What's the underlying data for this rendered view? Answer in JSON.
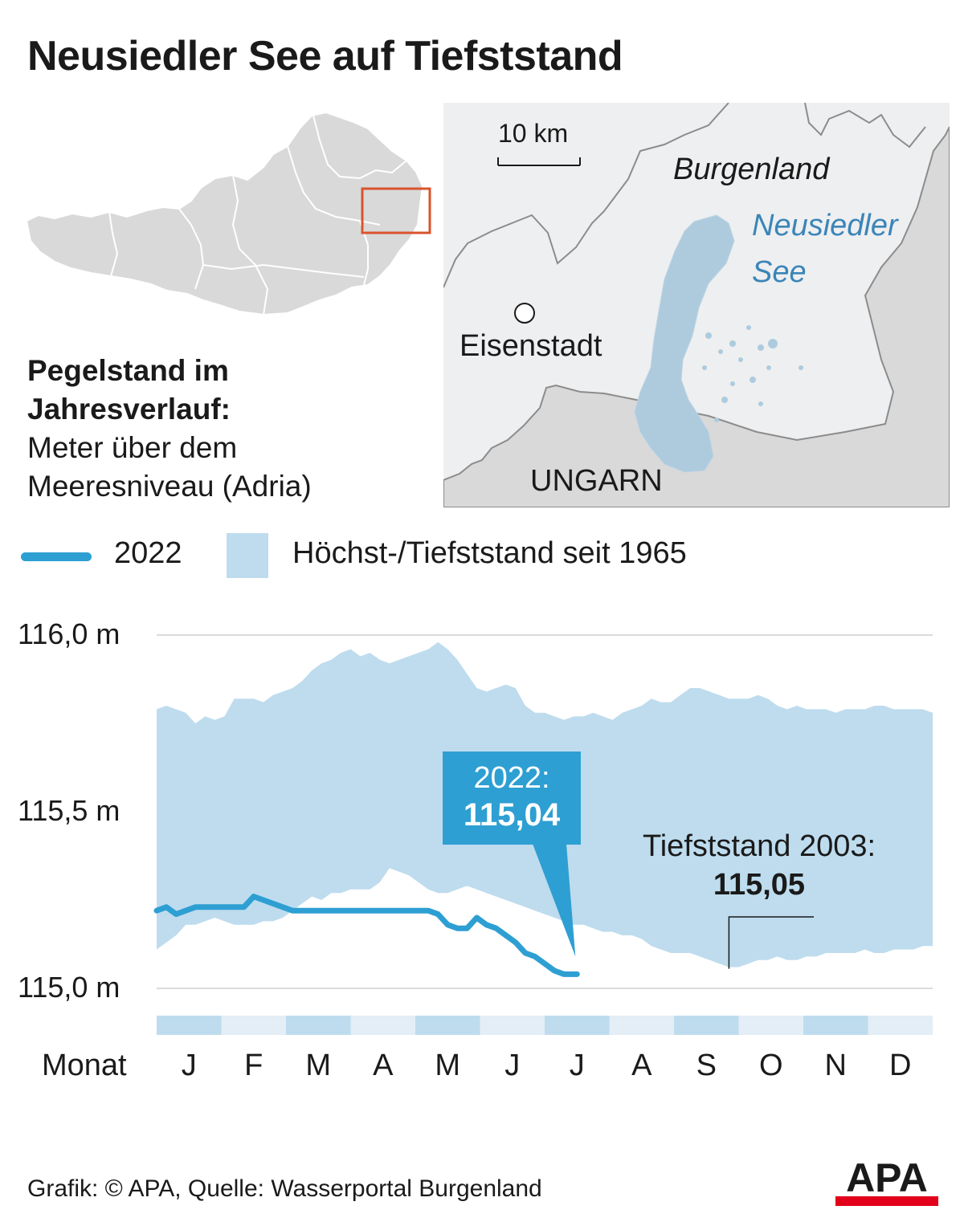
{
  "title": "Neusiedler See auf Tiefststand",
  "description": {
    "bold_line1": "Pegelstand im",
    "bold_line2": "Jahresverlauf:",
    "line3": "Meter über dem",
    "line4": "Meeresniveau (Adria)"
  },
  "map": {
    "scale": "10 km",
    "burgenland": "Burgenland",
    "lake_line1": "Neusiedler",
    "lake_line2": "See",
    "city": "Eisenstadt",
    "country": "UNGARN"
  },
  "legend": {
    "line_label": "2022",
    "band_label": "Höchst-/Tiefststand seit 1965"
  },
  "colors": {
    "line_2022": "#2e9fd2",
    "band": "#bedcee",
    "map_land": "#d9d9d9",
    "map_inset_bg": "#eeeff0",
    "lake": "#aecbde",
    "locator_box": "#d9542c",
    "logo_red": "#e2001a"
  },
  "chart_data": {
    "type": "area",
    "y_unit": "m",
    "yticks": [
      {
        "value": 116.0,
        "label": "116,0 m"
      },
      {
        "value": 115.5,
        "label": "115,5 m"
      },
      {
        "value": 115.0,
        "label": "115,0 m"
      }
    ],
    "ylim": [
      114.97,
      116.05
    ],
    "x_caption": "Monat",
    "months": [
      "J",
      "F",
      "M",
      "A",
      "M",
      "J",
      "J",
      "A",
      "S",
      "O",
      "N",
      "D"
    ],
    "grid": "horizontal",
    "legend_position": "top",
    "band": {
      "name": "Höchst-/Tiefststand seit 1965",
      "x": [
        0.0,
        0.15,
        0.3,
        0.45,
        0.6,
        0.75,
        0.9,
        1.05,
        1.2,
        1.35,
        1.5,
        1.65,
        1.8,
        1.95,
        2.1,
        2.25,
        2.4,
        2.55,
        2.7,
        2.85,
        3.0,
        3.15,
        3.3,
        3.45,
        3.6,
        3.75,
        3.9,
        4.05,
        4.2,
        4.35,
        4.5,
        4.65,
        4.8,
        4.95,
        5.1,
        5.25,
        5.4,
        5.55,
        5.7,
        5.85,
        6.0,
        6.15,
        6.3,
        6.45,
        6.6,
        6.75,
        6.9,
        7.05,
        7.2,
        7.35,
        7.5,
        7.65,
        7.8,
        7.95,
        8.1,
        8.25,
        8.4,
        8.55,
        8.7,
        8.85,
        9.0,
        9.15,
        9.3,
        9.45,
        9.6,
        9.75,
        9.9,
        10.05,
        10.2,
        10.35,
        10.5,
        10.65,
        10.8,
        10.95,
        11.1,
        11.25,
        11.4,
        11.55,
        11.7,
        11.85,
        12.0
      ],
      "high": [
        115.79,
        115.8,
        115.79,
        115.78,
        115.75,
        115.77,
        115.76,
        115.77,
        115.82,
        115.82,
        115.82,
        115.81,
        115.83,
        115.84,
        115.85,
        115.87,
        115.9,
        115.92,
        115.93,
        115.95,
        115.96,
        115.94,
        115.95,
        115.93,
        115.92,
        115.93,
        115.94,
        115.95,
        115.96,
        115.98,
        115.96,
        115.93,
        115.89,
        115.85,
        115.84,
        115.85,
        115.86,
        115.85,
        115.8,
        115.78,
        115.78,
        115.77,
        115.76,
        115.77,
        115.77,
        115.78,
        115.77,
        115.76,
        115.78,
        115.79,
        115.8,
        115.82,
        115.81,
        115.81,
        115.83,
        115.85,
        115.85,
        115.84,
        115.83,
        115.82,
        115.82,
        115.82,
        115.83,
        115.82,
        115.8,
        115.79,
        115.8,
        115.79,
        115.79,
        115.79,
        115.78,
        115.79,
        115.79,
        115.79,
        115.8,
        115.8,
        115.79,
        115.79,
        115.79,
        115.79,
        115.78
      ],
      "low": [
        115.11,
        115.13,
        115.15,
        115.18,
        115.18,
        115.19,
        115.2,
        115.19,
        115.18,
        115.18,
        115.18,
        115.19,
        115.19,
        115.2,
        115.22,
        115.24,
        115.26,
        115.25,
        115.27,
        115.27,
        115.28,
        115.28,
        115.28,
        115.3,
        115.34,
        115.33,
        115.32,
        115.3,
        115.28,
        115.27,
        115.27,
        115.28,
        115.29,
        115.28,
        115.27,
        115.26,
        115.25,
        115.24,
        115.23,
        115.22,
        115.21,
        115.2,
        115.19,
        115.18,
        115.18,
        115.17,
        115.16,
        115.16,
        115.15,
        115.15,
        115.14,
        115.12,
        115.11,
        115.1,
        115.1,
        115.1,
        115.09,
        115.08,
        115.07,
        115.06,
        115.06,
        115.07,
        115.08,
        115.08,
        115.09,
        115.08,
        115.08,
        115.09,
        115.09,
        115.1,
        115.1,
        115.1,
        115.1,
        115.11,
        115.1,
        115.1,
        115.11,
        115.11,
        115.11,
        115.12,
        115.12
      ]
    },
    "series": [
      {
        "name": "2022",
        "x": [
          0.0,
          0.15,
          0.3,
          0.45,
          0.6,
          0.75,
          0.9,
          1.05,
          1.2,
          1.35,
          1.5,
          1.65,
          1.8,
          1.95,
          2.1,
          2.25,
          2.4,
          2.55,
          2.7,
          2.85,
          3.0,
          3.15,
          3.3,
          3.45,
          3.6,
          3.75,
          3.9,
          4.05,
          4.2,
          4.35,
          4.5,
          4.65,
          4.8,
          4.95,
          5.1,
          5.25,
          5.4,
          5.55,
          5.7,
          5.85,
          6.0,
          6.15,
          6.3,
          6.45,
          6.5
        ],
        "values": [
          115.22,
          115.23,
          115.21,
          115.22,
          115.23,
          115.23,
          115.23,
          115.23,
          115.23,
          115.23,
          115.26,
          115.25,
          115.24,
          115.23,
          115.22,
          115.22,
          115.22,
          115.22,
          115.22,
          115.22,
          115.22,
          115.22,
          115.22,
          115.22,
          115.22,
          115.22,
          115.22,
          115.22,
          115.22,
          115.21,
          115.18,
          115.17,
          115.17,
          115.2,
          115.18,
          115.17,
          115.15,
          115.13,
          115.1,
          115.09,
          115.07,
          115.05,
          115.04,
          115.04,
          115.04
        ]
      }
    ],
    "annotations": {
      "current_label": "2022:",
      "current_value": "115,04",
      "record_label": "Tiefststand 2003:",
      "record_value": "115,05"
    }
  },
  "footer": "Grafik: © APA, Quelle: Wasserportal Burgenland",
  "logo_text": "APA"
}
